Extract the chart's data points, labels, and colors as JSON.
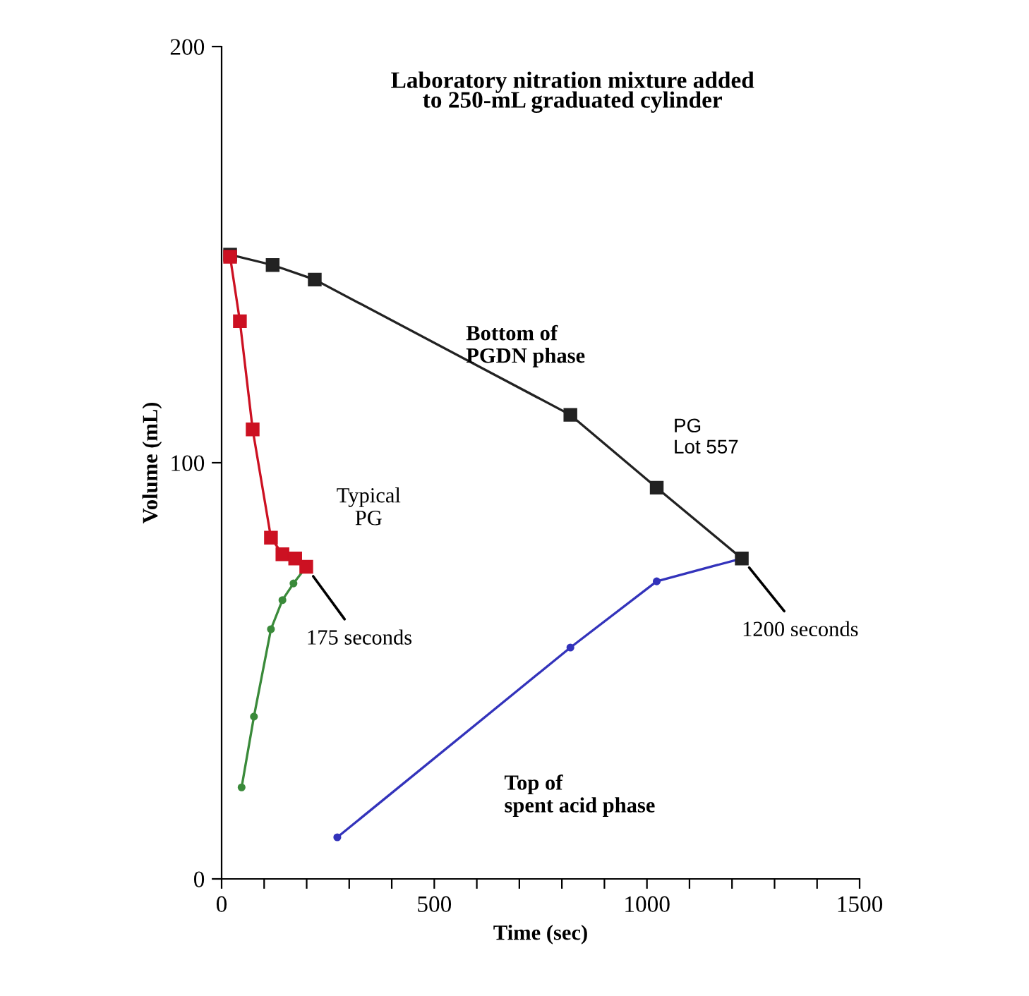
{
  "chart_data": {
    "type": "line",
    "title": "Laboratory nitration mixture added\nto 250-mL graduated cylinder",
    "xlabel": "Time (sec)",
    "ylabel": "Volume (mL)",
    "series": [
      {
        "color": "#cc1122",
        "marker": "square",
        "x": [
          20,
          43,
          73,
          116,
          143,
          173,
          199
        ],
        "values": [
          149.5,
          134,
          108,
          82,
          78,
          77,
          75
        ]
      },
      {
        "color": "#3a8a3a",
        "marker": "circle",
        "x": [
          47,
          76,
          116,
          143,
          169,
          199
        ],
        "values": [
          22,
          39,
          60,
          67,
          71,
          75
        ]
      },
      {
        "color": "#222222",
        "marker": "square",
        "x": [
          20,
          120,
          219,
          820,
          1023,
          1223
        ],
        "values": [
          150,
          147.5,
          144,
          111.5,
          94,
          77
        ]
      },
      {
        "color": "#3333bb",
        "marker": "circle",
        "x": [
          272,
          820,
          1023,
          1223
        ],
        "values": [
          10,
          55.6,
          71.5,
          77
        ]
      }
    ],
    "xlim": [
      0,
      1500
    ],
    "ylim": [
      0,
      200
    ],
    "xticks": [
      0,
      {
        "value": 100,
        "label": null
      },
      {
        "value": 200,
        "label": null
      },
      {
        "value": 300,
        "label": null
      },
      {
        "value": 400,
        "label": null
      },
      500,
      {
        "value": 600,
        "label": null
      },
      {
        "value": 700,
        "label": null
      },
      {
        "value": 800,
        "label": null
      },
      {
        "value": 900,
        "label": null
      },
      1000,
      {
        "value": 1100,
        "label": null
      },
      {
        "value": 1200,
        "label": null
      },
      {
        "value": 1300,
        "label": null
      },
      {
        "value": 1400,
        "label": null
      },
      1500
    ],
    "yticks": [
      0,
      100,
      200
    ],
    "annotations": [
      "Typical\nPG",
      {
        "text": "175 seconds",
        "x": 199,
        "y": 75
      },
      {
        "text": "1200 seconds",
        "x": 1223,
        "y": 77
      },
      "Bottom of\nPGDN phase",
      "PG\nLot 557",
      "Top of\nspent acid phase"
    ],
    "grid": false,
    "legend": false
  }
}
